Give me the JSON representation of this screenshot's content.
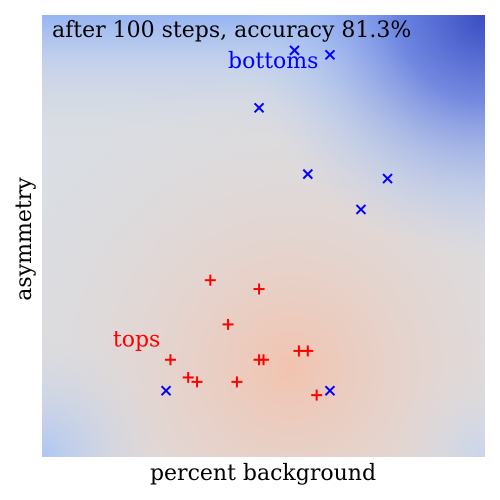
{
  "chart_data": {
    "type": "scatter",
    "title": "after 100 steps, accuracy 81.3%",
    "xlabel": "percent background",
    "ylabel": "asymmetry",
    "xlim": [
      0,
      1
    ],
    "ylim": [
      0,
      1
    ],
    "grid": false,
    "legend": "none",
    "annotations": [
      {
        "text": "bottoms",
        "x": 0.42,
        "y": 0.88,
        "color": "#0000ff"
      },
      {
        "text": "tops",
        "x": 0.16,
        "y": 0.25,
        "color": "#ff0000"
      }
    ],
    "series": [
      {
        "marker": "x",
        "color": "#0000ff",
        "points": [
          [
            0.57,
            0.92
          ],
          [
            0.65,
            0.91
          ],
          [
            0.49,
            0.79
          ],
          [
            0.6,
            0.64
          ],
          [
            0.78,
            0.63
          ],
          [
            0.72,
            0.56
          ],
          [
            0.28,
            0.15
          ],
          [
            0.65,
            0.15
          ]
        ]
      },
      {
        "marker": "+",
        "color": "#ff0000",
        "points": [
          [
            0.38,
            0.4
          ],
          [
            0.49,
            0.38
          ],
          [
            0.42,
            0.3
          ],
          [
            0.29,
            0.22
          ],
          [
            0.49,
            0.22
          ],
          [
            0.5,
            0.22
          ],
          [
            0.58,
            0.24
          ],
          [
            0.6,
            0.24
          ],
          [
            0.33,
            0.18
          ],
          [
            0.35,
            0.17
          ],
          [
            0.44,
            0.17
          ],
          [
            0.62,
            0.14
          ]
        ]
      }
    ]
  }
}
